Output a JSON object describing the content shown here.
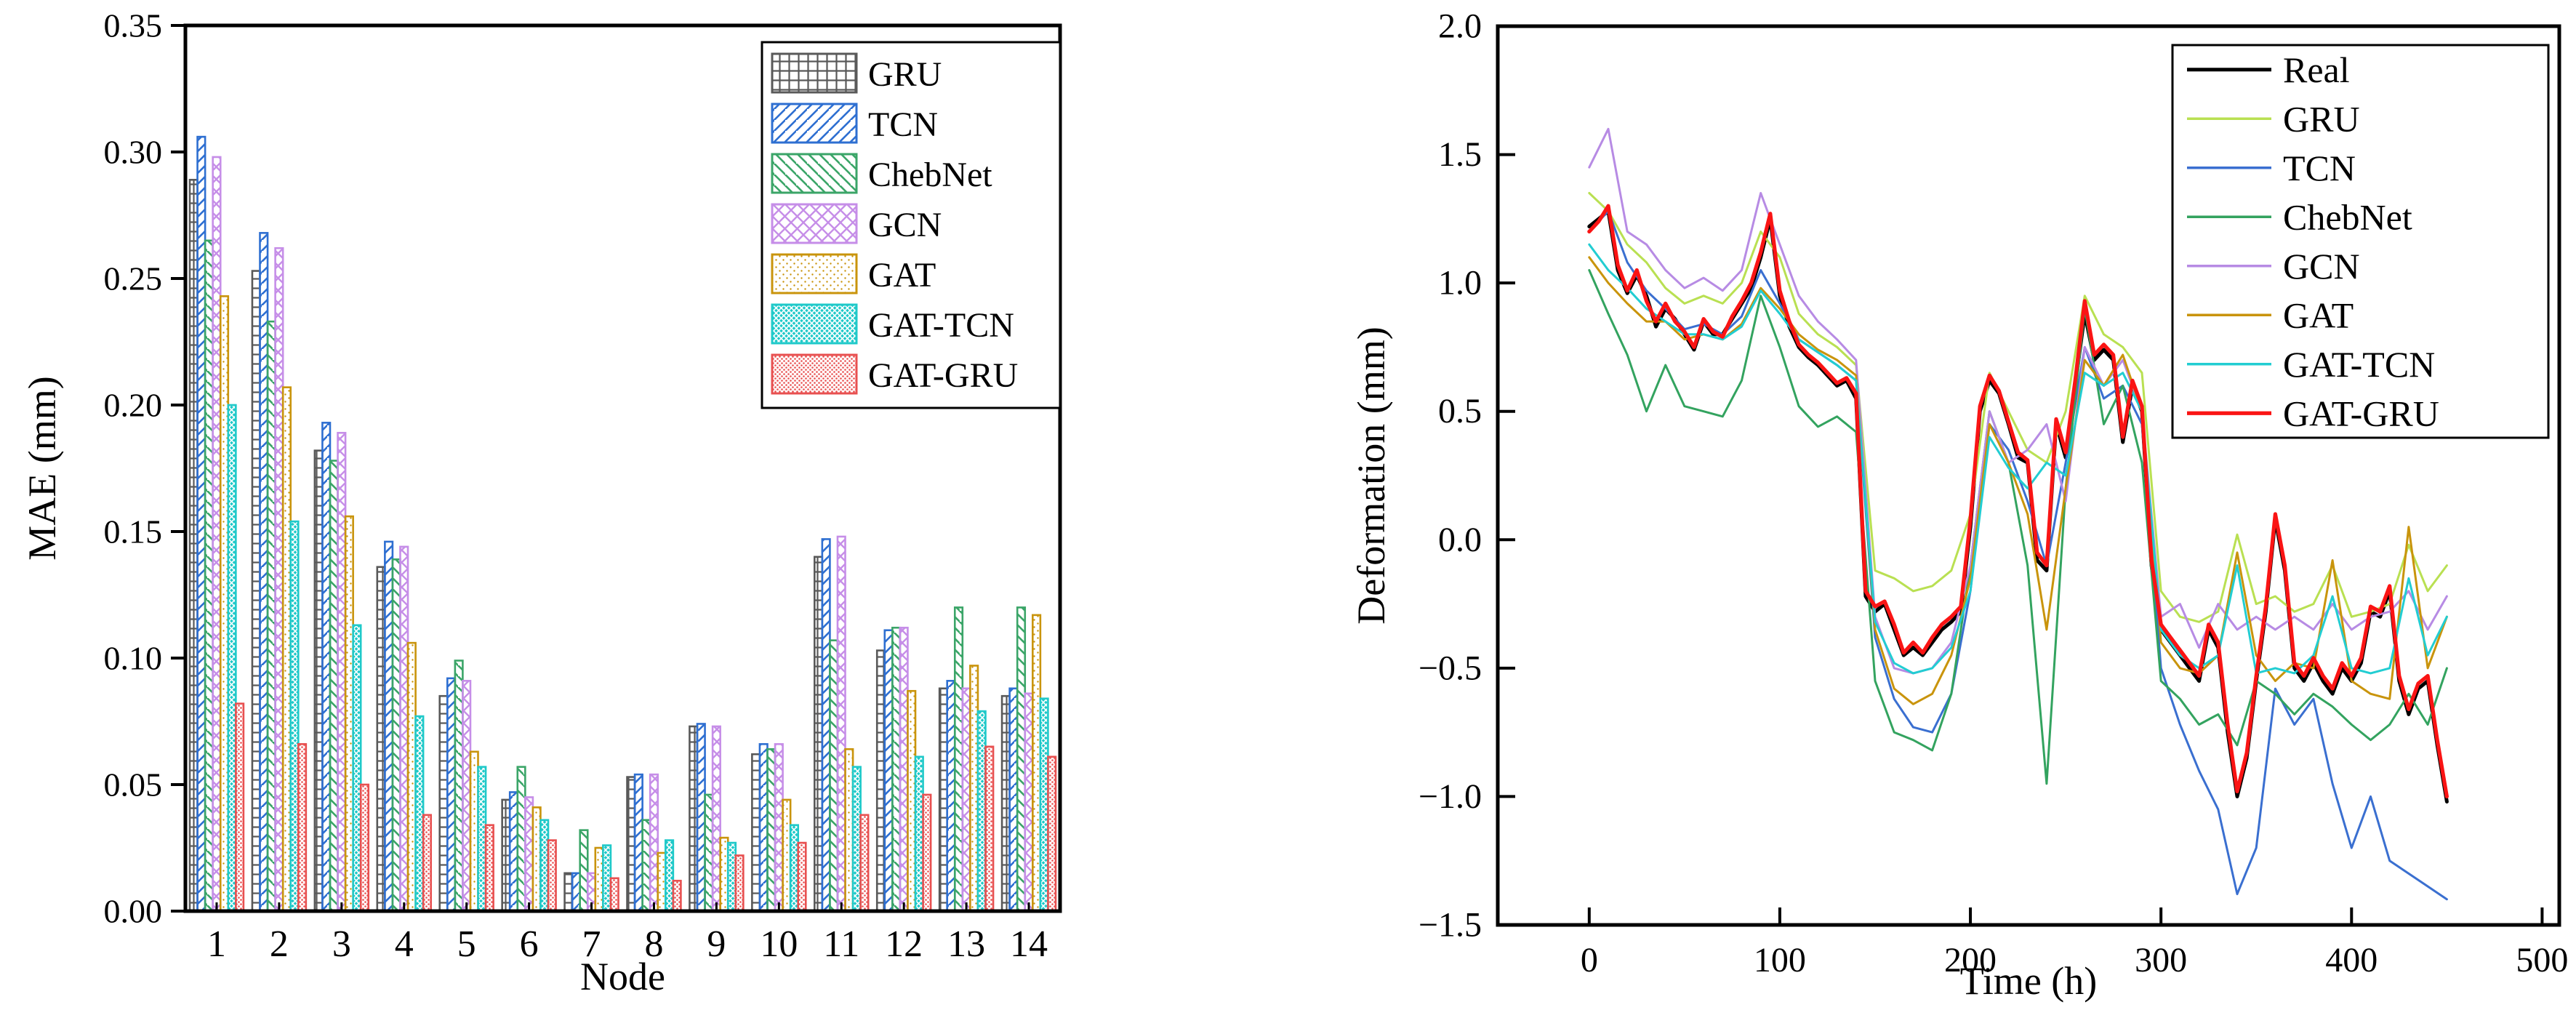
{
  "figure": {
    "background": "#ffffff"
  },
  "chart_data": [
    {
      "type": "bar",
      "xlabel": "Node",
      "ylabel": "MAE (mm)",
      "categories": [
        "1",
        "2",
        "3",
        "4",
        "5",
        "6",
        "7",
        "8",
        "9",
        "10",
        "11",
        "12",
        "13",
        "14"
      ],
      "ylim": [
        0,
        0.35
      ],
      "ytick_values": [
        0.0,
        0.05,
        0.1,
        0.15,
        0.2,
        0.25,
        0.3,
        0.35
      ],
      "ytick_labels": [
        "0.00",
        "0.05",
        "0.10",
        "0.15",
        "0.20",
        "0.25",
        "0.30",
        "0.35"
      ],
      "grid": false,
      "legend_position": "top-right",
      "series": [
        {
          "name": "GRU",
          "color": "#595959",
          "hatch": "grid",
          "values": [
            0.289,
            0.253,
            0.182,
            0.136,
            0.085,
            0.044,
            0.015,
            0.053,
            0.073,
            0.062,
            0.14,
            0.103,
            0.088,
            0.085
          ]
        },
        {
          "name": "TCN",
          "color": "#2e6fd1",
          "hatch": "fwd",
          "values": [
            0.306,
            0.268,
            0.193,
            0.146,
            0.092,
            0.047,
            0.015,
            0.054,
            0.074,
            0.066,
            0.147,
            0.111,
            0.091,
            0.088
          ]
        },
        {
          "name": "ChebNet",
          "color": "#3ba568",
          "hatch": "back",
          "values": [
            0.265,
            0.233,
            0.178,
            0.139,
            0.099,
            0.057,
            0.032,
            0.036,
            0.046,
            0.064,
            0.107,
            0.112,
            0.12,
            0.12
          ]
        },
        {
          "name": "GCN",
          "color": "#c68ee8",
          "hatch": "cross",
          "values": [
            0.298,
            0.262,
            0.189,
            0.144,
            0.091,
            0.045,
            0.015,
            0.054,
            0.073,
            0.066,
            0.148,
            0.112,
            0.088,
            0.086
          ]
        },
        {
          "name": "GAT",
          "color": "#c9940c",
          "hatch": "dots",
          "values": [
            0.243,
            0.207,
            0.156,
            0.106,
            0.063,
            0.041,
            0.025,
            0.023,
            0.029,
            0.044,
            0.064,
            0.087,
            0.097,
            0.117
          ]
        },
        {
          "name": "GAT-TCN",
          "color": "#1fc9c9",
          "hatch": "weave",
          "values": [
            0.2,
            0.154,
            0.113,
            0.077,
            0.057,
            0.036,
            0.026,
            0.028,
            0.027,
            0.034,
            0.057,
            0.061,
            0.079,
            0.084
          ]
        },
        {
          "name": "GAT-GRU",
          "color": "#e85050",
          "hatch": "reddots",
          "values": [
            0.082,
            0.066,
            0.05,
            0.038,
            0.034,
            0.028,
            0.013,
            0.012,
            0.022,
            0.027,
            0.038,
            0.046,
            0.065,
            0.061
          ]
        }
      ]
    },
    {
      "type": "line",
      "xlabel": "Time (h)",
      "ylabel": "Deformation (mm)",
      "xlim": [
        -48,
        509
      ],
      "ylim": [
        -1.5,
        2.0
      ],
      "xtick_values": [
        0,
        100,
        200,
        300,
        400,
        500
      ],
      "xtick_labels": [
        "0",
        "100",
        "200",
        "300",
        "400",
        "500"
      ],
      "ytick_values": [
        2.0,
        1.5,
        1.0,
        0.5,
        0.0,
        -0.5,
        -1.0,
        -1.5
      ],
      "ytick_labels": [
        "2.0",
        "1.5",
        "1.0",
        "0.5",
        "0.0",
        "−0.5",
        "−1.0",
        "−1.5"
      ],
      "grid": false,
      "legend_position": "top-right",
      "series": [
        {
          "name": "Real",
          "color": "#000000",
          "width": 5.0,
          "x_start": 0,
          "x_step": 5,
          "y": [
            1.22,
            1.25,
            1.28,
            1.05,
            0.96,
            1.03,
            0.95,
            0.83,
            0.9,
            0.86,
            0.8,
            0.74,
            0.85,
            0.8,
            0.8,
            0.86,
            0.92,
            0.98,
            1.1,
            1.25,
            0.95,
            0.83,
            0.75,
            0.71,
            0.68,
            0.64,
            0.6,
            0.62,
            0.55,
            -0.22,
            -0.28,
            -0.25,
            -0.35,
            -0.45,
            -0.42,
            -0.45,
            -0.4,
            -0.35,
            -0.32,
            -0.28,
            0.05,
            0.5,
            0.62,
            0.57,
            0.45,
            0.32,
            0.3,
            -0.08,
            -0.12,
            0.45,
            0.32,
            0.6,
            0.88,
            0.7,
            0.74,
            0.7,
            0.38,
            0.6,
            0.5,
            -0.1,
            -0.35,
            -0.4,
            -0.45,
            -0.5,
            -0.55,
            -0.35,
            -0.42,
            -0.75,
            -1.0,
            -0.85,
            -0.55,
            -0.28,
            0.08,
            -0.12,
            -0.5,
            -0.55,
            -0.48,
            -0.55,
            -0.6,
            -0.5,
            -0.55,
            -0.48,
            -0.28,
            -0.3,
            -0.2,
            -0.55,
            -0.68,
            -0.58,
            -0.55,
            -0.8,
            -1.02
          ]
        },
        {
          "name": "GRU",
          "color": "#b9e052",
          "width": 3.0,
          "x_start": 0,
          "x_step": 10,
          "y": [
            1.35,
            1.28,
            1.15,
            1.08,
            0.98,
            0.92,
            0.95,
            0.92,
            1.0,
            1.2,
            1.1,
            0.88,
            0.8,
            0.75,
            0.68,
            -0.12,
            -0.15,
            -0.2,
            -0.18,
            -0.12,
            0.1,
            0.65,
            0.5,
            0.35,
            0.3,
            0.5,
            0.95,
            0.8,
            0.75,
            0.65,
            -0.2,
            -0.3,
            -0.32,
            -0.28,
            0.02,
            -0.25,
            -0.22,
            -0.28,
            -0.25,
            -0.1,
            -0.3,
            -0.28,
            -0.25,
            -0.02,
            -0.2,
            -0.1
          ]
        },
        {
          "name": "TCN",
          "color": "#3a6fd0",
          "width": 3.0,
          "x_start": 0,
          "x_step": 10,
          "y": [
            1.2,
            1.28,
            1.08,
            0.97,
            0.9,
            0.82,
            0.84,
            0.8,
            0.87,
            1.05,
            0.92,
            0.78,
            0.73,
            0.68,
            0.62,
            -0.38,
            -0.62,
            -0.73,
            -0.75,
            -0.6,
            -0.2,
            0.45,
            0.35,
            0.15,
            -0.1,
            0.3,
            0.75,
            0.55,
            0.6,
            0.45,
            -0.5,
            -0.72,
            -0.9,
            -1.05,
            -1.38,
            -1.2,
            -0.58,
            -0.72,
            -0.62,
            -0.95,
            -1.2,
            -1.0,
            -1.25,
            -1.3,
            -1.35,
            -1.4
          ]
        },
        {
          "name": "ChebNet",
          "color": "#33a35f",
          "width": 3.0,
          "x_start": 0,
          "x_step": 10,
          "y": [
            1.05,
            0.88,
            0.72,
            0.5,
            0.68,
            0.52,
            0.5,
            0.48,
            0.62,
            0.95,
            0.75,
            0.52,
            0.44,
            0.48,
            0.42,
            -0.55,
            -0.75,
            -0.78,
            -0.82,
            -0.6,
            -0.1,
            0.5,
            0.3,
            -0.1,
            -0.95,
            0.2,
            0.9,
            0.45,
            0.6,
            0.3,
            -0.55,
            -0.62,
            -0.72,
            -0.68,
            -0.8,
            -0.55,
            -0.6,
            -0.68,
            -0.6,
            -0.65,
            -0.72,
            -0.78,
            -0.72,
            -0.6,
            -0.72,
            -0.5
          ]
        },
        {
          "name": "GCN",
          "color": "#b78be4",
          "width": 3.0,
          "x_start": 0,
          "x_step": 10,
          "y": [
            1.45,
            1.6,
            1.2,
            1.15,
            1.05,
            0.98,
            1.02,
            0.97,
            1.05,
            1.35,
            1.15,
            0.95,
            0.85,
            0.78,
            0.7,
            -0.3,
            -0.5,
            -0.52,
            -0.5,
            -0.4,
            -0.1,
            0.5,
            0.3,
            0.35,
            0.45,
            0.15,
            0.75,
            0.6,
            0.7,
            0.5,
            -0.3,
            -0.25,
            -0.42,
            -0.25,
            -0.35,
            -0.3,
            -0.35,
            -0.3,
            -0.35,
            -0.25,
            -0.35,
            -0.3,
            -0.28,
            -0.2,
            -0.35,
            -0.22
          ]
        },
        {
          "name": "GAT",
          "color": "#c9940c",
          "width": 3.0,
          "x_start": 0,
          "x_step": 10,
          "y": [
            1.1,
            1.0,
            0.92,
            0.85,
            0.85,
            0.78,
            0.8,
            0.78,
            0.84,
            0.98,
            0.9,
            0.8,
            0.74,
            0.7,
            0.64,
            -0.35,
            -0.58,
            -0.64,
            -0.6,
            -0.45,
            -0.15,
            0.45,
            0.3,
            0.1,
            -0.35,
            0.2,
            0.7,
            0.6,
            0.72,
            0.5,
            -0.4,
            -0.5,
            -0.52,
            -0.45,
            -0.05,
            -0.45,
            -0.55,
            -0.48,
            -0.5,
            -0.08,
            -0.55,
            -0.6,
            -0.62,
            0.05,
            -0.5,
            -0.3
          ]
        },
        {
          "name": "GAT-TCN",
          "color": "#22cdd2",
          "width": 3.0,
          "x_start": 0,
          "x_step": 10,
          "y": [
            1.15,
            1.05,
            0.98,
            0.9,
            0.85,
            0.8,
            0.8,
            0.78,
            0.83,
            0.97,
            0.88,
            0.78,
            0.73,
            0.68,
            0.62,
            -0.32,
            -0.48,
            -0.52,
            -0.5,
            -0.42,
            -0.2,
            0.4,
            0.28,
            0.2,
            0.3,
            0.25,
            0.65,
            0.6,
            0.65,
            0.5,
            -0.35,
            -0.45,
            -0.5,
            -0.45,
            -0.1,
            -0.52,
            -0.5,
            -0.52,
            -0.45,
            -0.22,
            -0.5,
            -0.52,
            -0.5,
            -0.15,
            -0.45,
            -0.3
          ]
        },
        {
          "name": "GAT-GRU",
          "color": "#fa1414",
          "width": 5.2,
          "x_start": 0,
          "x_step": 5,
          "y": [
            1.2,
            1.24,
            1.3,
            1.07,
            0.97,
            1.05,
            0.93,
            0.85,
            0.92,
            0.85,
            0.81,
            0.75,
            0.86,
            0.81,
            0.79,
            0.87,
            0.93,
            1.0,
            1.12,
            1.27,
            0.97,
            0.85,
            0.76,
            0.72,
            0.69,
            0.65,
            0.61,
            0.63,
            0.57,
            -0.2,
            -0.26,
            -0.24,
            -0.33,
            -0.44,
            -0.4,
            -0.44,
            -0.38,
            -0.33,
            -0.3,
            -0.26,
            0.08,
            0.52,
            0.64,
            0.58,
            0.46,
            0.34,
            0.31,
            -0.05,
            -0.1,
            0.47,
            0.34,
            0.62,
            0.93,
            0.72,
            0.76,
            0.72,
            0.4,
            0.62,
            0.52,
            -0.08,
            -0.33,
            -0.38,
            -0.43,
            -0.48,
            -0.53,
            -0.33,
            -0.4,
            -0.72,
            -0.98,
            -0.83,
            -0.53,
            -0.26,
            0.1,
            -0.1,
            -0.48,
            -0.53,
            -0.46,
            -0.53,
            -0.58,
            -0.48,
            -0.53,
            -0.46,
            -0.26,
            -0.28,
            -0.18,
            -0.53,
            -0.66,
            -0.56,
            -0.53,
            -0.78,
            -1.0
          ]
        }
      ]
    }
  ]
}
